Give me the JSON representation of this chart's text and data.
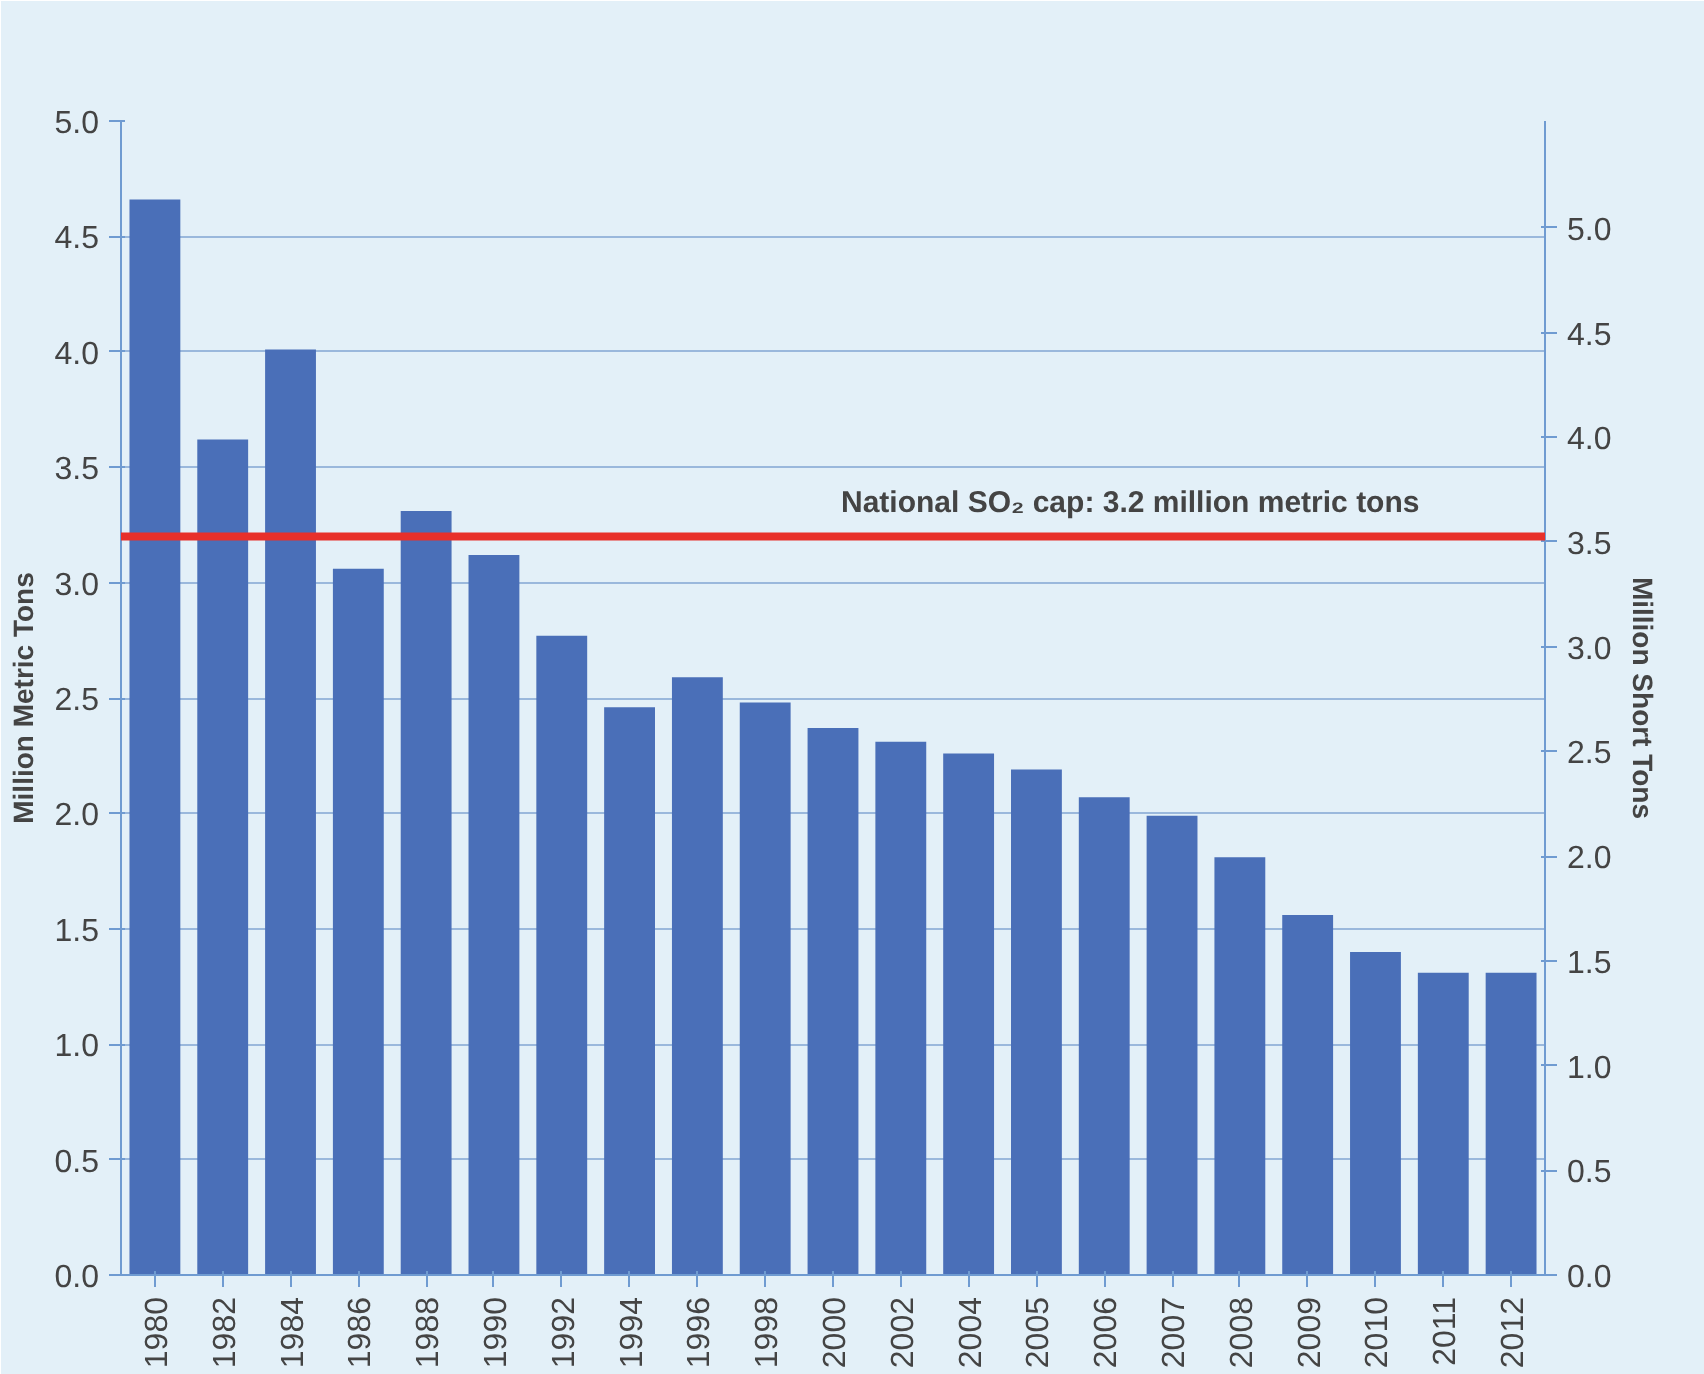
{
  "chart_data": {
    "type": "bar",
    "ylabel": "Million Metric Tons",
    "y2label": "Million Short Tons",
    "categories": [
      "1980",
      "1982",
      "1984",
      "1986",
      "1988",
      "1990",
      "1992",
      "1994",
      "1996",
      "1998",
      "2000",
      "2002",
      "2004",
      "2005",
      "2006",
      "2007",
      "2008",
      "2009",
      "2010",
      "2011",
      "2012"
    ],
    "values": [
      4.66,
      3.62,
      4.01,
      3.06,
      3.31,
      3.12,
      2.77,
      2.46,
      2.59,
      2.48,
      2.37,
      2.31,
      2.26,
      2.19,
      2.07,
      1.99,
      1.81,
      1.56,
      1.4,
      1.31,
      1.31
    ],
    "color": "#4a6fb8",
    "ylim": [
      0,
      5.0
    ],
    "yticks": [
      {
        "value": 0,
        "label": "0.0"
      },
      {
        "value": 0.5,
        "label": "0.5"
      },
      {
        "value": 1,
        "label": "1.0"
      },
      {
        "value": 1.5,
        "label": "1.5"
      },
      {
        "value": 2,
        "label": "2.0"
      },
      {
        "value": 2.5,
        "label": "2.5"
      },
      {
        "value": 3,
        "label": "3.0"
      },
      {
        "value": 3.5,
        "label": "3.5"
      },
      {
        "value": 4,
        "label": "4.0"
      },
      {
        "value": 4.5,
        "label": "4.5"
      },
      {
        "value": 5,
        "label": "5.0"
      }
    ],
    "y2lim": [
      0,
      5.51
    ],
    "y2ticks": [
      {
        "value": 0,
        "label": "0.0"
      },
      {
        "value": 0.5,
        "label": "0.5"
      },
      {
        "value": 1,
        "label": "1.0"
      },
      {
        "value": 1.5,
        "label": "1.5"
      },
      {
        "value": 2,
        "label": "2.0"
      },
      {
        "value": 2.5,
        "label": "2.5"
      },
      {
        "value": 3,
        "label": "3.0"
      },
      {
        "value": 3.5,
        "label": "3.5"
      },
      {
        "value": 4,
        "label": "4.0"
      },
      {
        "value": 4.5,
        "label": "4.5"
      },
      {
        "value": 5,
        "label": "5.0"
      }
    ],
    "ref_lines": [
      {
        "axis": "y",
        "value": 3.2,
        "label": "National SO₂ cap: 3.2 million metric tons",
        "color": "#e8302a"
      }
    ],
    "grid": "y"
  }
}
